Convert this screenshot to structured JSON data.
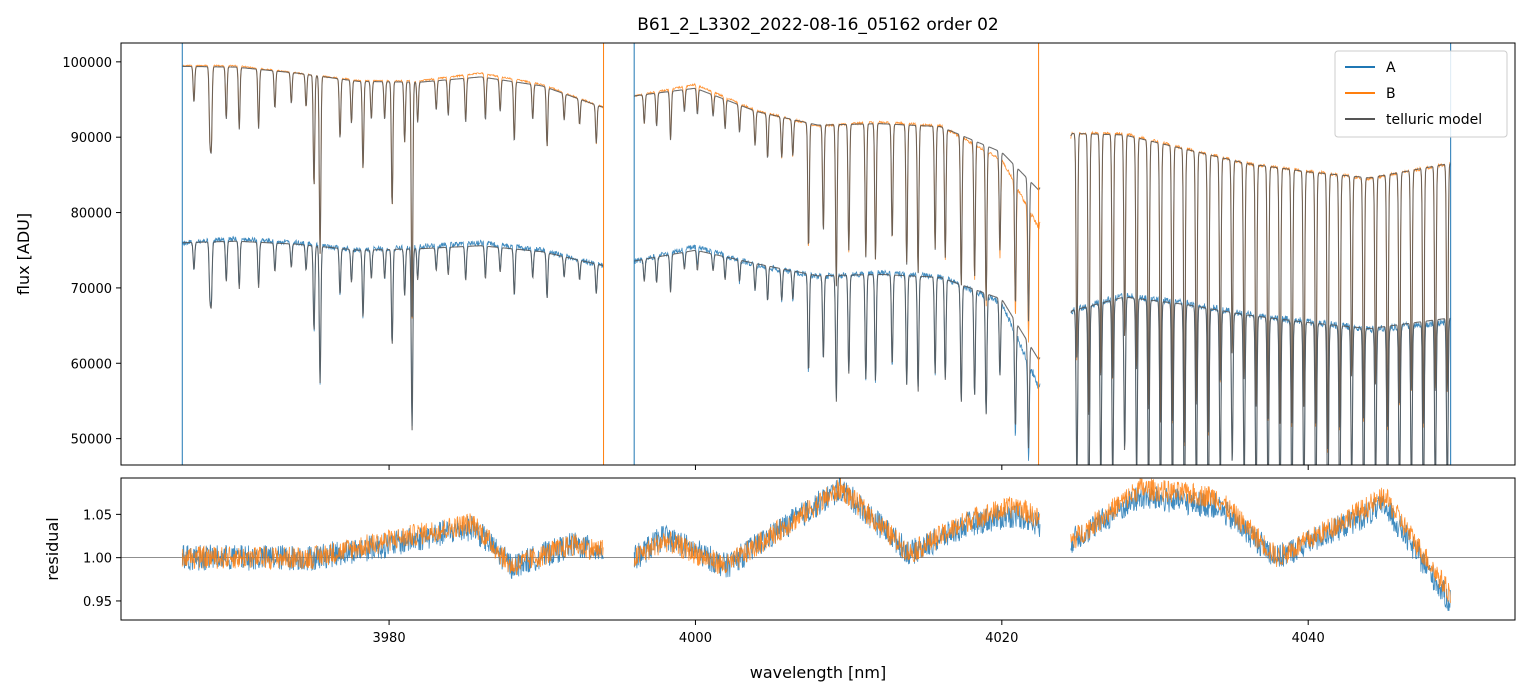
{
  "chart_data": [
    {
      "panel": "main",
      "type": "line",
      "title": "B61_2_L3302_2022-08-16_05162  order 02",
      "xlabel": "",
      "ylabel": "flux [ADU]",
      "xlim": [
        3962.5,
        4053.5
      ],
      "ylim": [
        46500,
        102500
      ],
      "xticks": [
        3980,
        4000,
        4020,
        4040
      ],
      "yticks": [
        50000,
        60000,
        70000,
        80000,
        90000,
        100000
      ],
      "ytick_labels": [
        "50000",
        "60000",
        "70000",
        "80000",
        "90000",
        "100000"
      ],
      "legend": {
        "position": "upper right",
        "entries": [
          "A",
          "B",
          "telluric model"
        ]
      },
      "segments": [
        [
          3966.5,
          3994.0
        ],
        [
          3996.0,
          4022.5
        ],
        [
          4024.5,
          4049.3
        ]
      ],
      "series": [
        {
          "name": "A",
          "color": "#1f77b4",
          "x": [
            3966.6,
            3970,
            3974,
            3978,
            3982,
            3986,
            3990,
            3993.9,
            3996.1,
            4000,
            4004,
            4008,
            4012,
            4016,
            4020,
            4022.4,
            4024.6,
            4028,
            4032,
            4036,
            4040,
            4044,
            4049.2
          ],
          "y": [
            76000,
            76500,
            76000,
            75000,
            75500,
            76000,
            75000,
            73000,
            73500,
            75500,
            73000,
            71500,
            72000,
            71500,
            68000,
            57000,
            67000,
            69000,
            68000,
            66500,
            65500,
            64500,
            65500
          ]
        },
        {
          "name": "B",
          "color": "#ff7f0e",
          "x": [
            3966.6,
            3970,
            3974,
            3978,
            3982,
            3986,
            3990,
            3993.9,
            3996.1,
            4000,
            4004,
            4008,
            4012,
            4016,
            4020,
            4022.4,
            4024.6,
            4028,
            4032,
            4036,
            4040,
            4044,
            4049.2
          ],
          "y": [
            99500,
            99500,
            98500,
            97500,
            97500,
            98500,
            97000,
            94000,
            95500,
            97000,
            93500,
            91500,
            92000,
            91500,
            87000,
            78000,
            90500,
            90500,
            88500,
            86500,
            85500,
            84500,
            86500
          ]
        },
        {
          "name": "telluric model",
          "color": "#555555",
          "x": [
            3966.6,
            3970,
            3974,
            3978,
            3982,
            3986,
            3990,
            3993.9,
            3996.1,
            4000,
            4004,
            4008,
            4012,
            4016,
            4020,
            4022.4,
            4024.6,
            4028,
            4032,
            4036,
            4040,
            4044,
            4049.2
          ],
          "y_A": [
            76000,
            76200,
            75800,
            75000,
            75200,
            75600,
            74800,
            73000,
            73600,
            75000,
            73200,
            71600,
            71800,
            71400,
            68500,
            60500,
            67000,
            68800,
            67800,
            66400,
            65400,
            64600,
            66000
          ],
          "y_B": [
            99400,
            99300,
            98500,
            97400,
            97300,
            98000,
            96800,
            94000,
            95500,
            96500,
            93400,
            91600,
            91800,
            91400,
            88000,
            83000,
            90500,
            90300,
            88400,
            86500,
            85400,
            84600,
            86500
          ]
        }
      ]
    },
    {
      "panel": "residual",
      "type": "line",
      "title": "",
      "xlabel": "wavelength [nm]",
      "ylabel": "residual",
      "xlim": [
        3962.5,
        4053.5
      ],
      "ylim": [
        0.928,
        1.092
      ],
      "xticks": [
        3980,
        4000,
        4020,
        4040
      ],
      "xtick_labels": [
        "3980",
        "4000",
        "4020",
        "4040"
      ],
      "yticks": [
        0.95,
        1.0,
        1.05
      ],
      "ytick_labels": [
        "0.95",
        "1.00",
        "1.05"
      ],
      "reference_line": 1.0,
      "series": [
        {
          "name": "A",
          "color": "#1f77b4",
          "x": [
            3966.6,
            3975,
            3980,
            3985.5,
            3988,
            3992,
            3996.1,
            3998,
            4002,
            4009.5,
            4014,
            4018,
            4021,
            4024.6,
            4029,
            4034,
            4038,
            4045,
            4049.2
          ],
          "y": [
            1.0,
            1.0,
            1.015,
            1.035,
            0.99,
            1.015,
            1.0,
            1.025,
            0.99,
            1.08,
            1.005,
            1.04,
            1.05,
            1.02,
            1.07,
            1.06,
            1.0,
            1.06,
            0.95
          ]
        },
        {
          "name": "B",
          "color": "#ff7f0e",
          "x": [
            3966.6,
            3975,
            3980,
            3985.5,
            3988,
            3992,
            3996.1,
            3998,
            4002,
            4009.5,
            4014,
            4018,
            4021,
            4024.6,
            4029,
            4034,
            4038,
            4045,
            4049.2
          ],
          "y": [
            1.0,
            1.0,
            1.02,
            1.04,
            0.99,
            1.015,
            1.0,
            1.02,
            0.99,
            1.08,
            1.005,
            1.045,
            1.06,
            1.02,
            1.08,
            1.07,
            1.0,
            1.07,
            0.96
          ]
        }
      ]
    }
  ]
}
